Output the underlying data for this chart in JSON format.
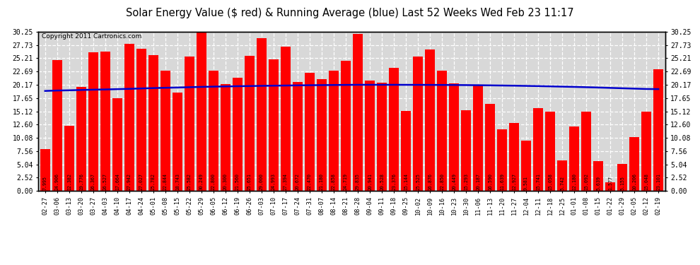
{
  "title": "Solar Energy Value ($ red) & Running Average (blue) Last 52 Weeks Wed Feb 23 11:17",
  "copyright": "Copyright 2011 Cartronics.com",
  "bar_color": "#FF0000",
  "line_color": "#0000CC",
  "background_color": "#FFFFFF",
  "plot_bg_color": "#D8D8D8",
  "ylim_min": 0,
  "ylim_max": 30.25,
  "yticks": [
    0.0,
    2.52,
    5.04,
    7.56,
    10.08,
    12.6,
    15.12,
    17.65,
    20.17,
    22.69,
    25.21,
    27.73,
    30.25
  ],
  "categories": [
    "02-27",
    "03-06",
    "03-13",
    "03-20",
    "03-27",
    "04-03",
    "04-10",
    "04-17",
    "04-24",
    "05-01",
    "05-08",
    "05-15",
    "05-22",
    "05-29",
    "06-05",
    "06-12",
    "06-19",
    "06-26",
    "07-03",
    "07-10",
    "07-17",
    "07-24",
    "07-31",
    "08-07",
    "08-14",
    "08-21",
    "08-28",
    "09-04",
    "09-11",
    "09-18",
    "09-25",
    "10-02",
    "10-09",
    "10-16",
    "10-23",
    "10-30",
    "11-06",
    "11-13",
    "11-20",
    "11-27",
    "12-04",
    "12-11",
    "12-18",
    "12-25",
    "01-01",
    "01-08",
    "01-15",
    "01-22",
    "01-29",
    "02-05",
    "02-12",
    "02-19"
  ],
  "values": [
    7.995,
    24.906,
    12.382,
    19.776,
    26.367,
    26.527,
    17.664,
    27.942,
    27.027,
    25.782,
    22.844,
    18.743,
    25.582,
    30.249,
    22.8,
    20.3,
    21.56,
    25.651,
    29.0,
    24.993,
    27.394,
    20.672,
    22.47,
    21.18,
    22.858,
    24.719,
    29.835,
    20.941,
    20.528,
    23.376,
    15.144,
    25.525,
    26.876,
    22.85,
    20.449,
    15.293,
    20.187,
    16.59,
    11.639,
    12.927,
    9.581,
    15.741,
    15.058,
    5.742,
    12.18,
    15.092,
    5.639,
    1.577,
    5.155,
    10.206,
    15.048,
    23.101
  ],
  "running_avg": [
    19.0,
    19.08,
    19.12,
    19.18,
    19.24,
    19.28,
    19.34,
    19.4,
    19.47,
    19.54,
    19.6,
    19.65,
    19.71,
    19.77,
    19.82,
    19.86,
    19.9,
    19.93,
    19.97,
    20.0,
    20.03,
    20.06,
    20.09,
    20.11,
    20.13,
    20.15,
    20.17,
    20.17,
    20.17,
    20.17,
    20.16,
    20.16,
    20.15,
    20.14,
    20.13,
    20.11,
    20.09,
    20.06,
    20.03,
    20.0,
    19.96,
    19.92,
    19.87,
    19.82,
    19.77,
    19.71,
    19.65,
    19.58,
    19.51,
    19.44,
    19.37,
    19.35
  ]
}
